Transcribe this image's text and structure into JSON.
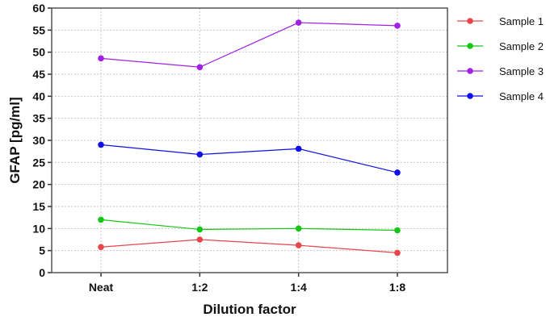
{
  "chart_data": {
    "type": "line",
    "title": "",
    "xlabel": "Dilution factor",
    "ylabel": "GFAP [pg/ml]",
    "categories": [
      "Neat",
      "1:2",
      "1:4",
      "1:8"
    ],
    "ylim": [
      0,
      60
    ],
    "yticks": [
      0,
      5,
      10,
      15,
      20,
      25,
      30,
      35,
      40,
      45,
      50,
      55,
      60
    ],
    "grid": true,
    "legend_position": "right",
    "series": [
      {
        "name": "Sample 1",
        "color": "#e8464a",
        "values": [
          5.8,
          7.5,
          6.2,
          4.5
        ]
      },
      {
        "name": "Sample 2",
        "color": "#14c714",
        "values": [
          12.0,
          9.8,
          10.0,
          9.6
        ]
      },
      {
        "name": "Sample 3",
        "color": "#a020e6",
        "values": [
          48.6,
          46.6,
          56.7,
          56.0
        ]
      },
      {
        "name": "Sample 4",
        "color": "#1010e6",
        "values": [
          29.0,
          26.8,
          28.1,
          22.7
        ]
      }
    ]
  }
}
